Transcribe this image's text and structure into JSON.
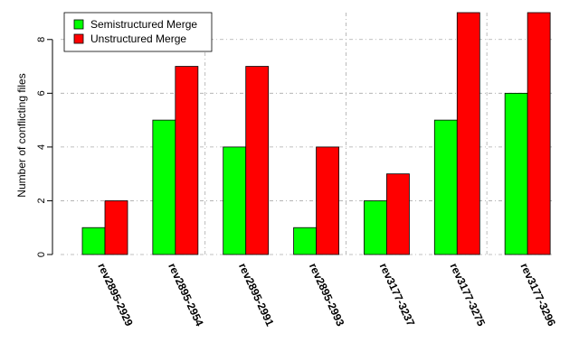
{
  "chart_data": {
    "type": "bar",
    "title": "",
    "xlabel": "",
    "ylabel": "Number of conflicting files",
    "categories": [
      "rev2895-2929",
      "rev2895-2954",
      "rev2895-2991",
      "rev2895-2993",
      "rev3177-3237",
      "rev3177-3275",
      "rev3177-3296"
    ],
    "series": [
      {
        "name": "Semistructured Merge",
        "color": "#00ff00",
        "values": [
          1,
          5,
          4,
          1,
          2,
          5,
          6
        ]
      },
      {
        "name": "Unstructured Merge",
        "color": "#ff0000",
        "values": [
          2,
          7,
          7,
          4,
          3,
          9,
          9
        ]
      }
    ],
    "ylim": [
      0,
      9
    ],
    "yticks": [
      0,
      2,
      4,
      6,
      8
    ],
    "grid": true,
    "legend_position": "top-left"
  }
}
